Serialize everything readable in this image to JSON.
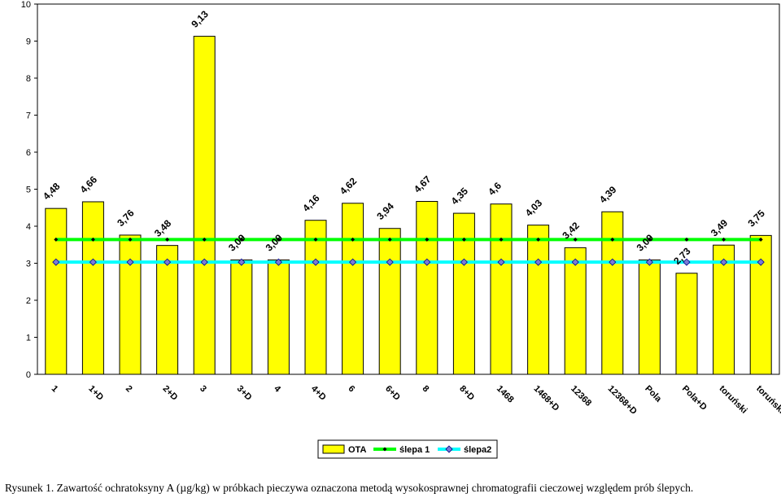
{
  "chart_data": {
    "type": "bar",
    "categories": [
      "1",
      "1+D",
      "2",
      "2+D",
      "3",
      "3+D",
      "4",
      "4+D",
      "6",
      "6+D",
      "8",
      "8+D",
      "1468",
      "1468+D",
      "12368",
      "12368+D",
      "Pola",
      "Pola+D",
      "toruński",
      "toruński+D"
    ],
    "series": [
      {
        "name": "OTA",
        "type": "bar",
        "color": "#ffff00",
        "values": [
          4.48,
          4.66,
          3.76,
          3.48,
          9.13,
          3.09,
          3.09,
          4.16,
          4.62,
          3.94,
          4.67,
          4.35,
          4.6,
          4.03,
          3.42,
          4.39,
          3.09,
          2.73,
          3.49,
          3.75
        ]
      },
      {
        "name": "ślepa 1",
        "type": "line",
        "color": "#00ff00",
        "marker_color": "#000000",
        "values": [
          3.64,
          3.64,
          3.64,
          3.64,
          3.64,
          3.64,
          3.64,
          3.64,
          3.64,
          3.64,
          3.64,
          3.64,
          3.64,
          3.64,
          3.64,
          3.64,
          3.64,
          3.64,
          3.64,
          3.64
        ]
      },
      {
        "name": "ślepa2",
        "type": "line",
        "color": "#00ffff",
        "marker_color": "#000080",
        "values": [
          3.03,
          3.03,
          3.03,
          3.03,
          3.03,
          3.03,
          3.03,
          3.03,
          3.03,
          3.03,
          3.03,
          3.03,
          3.03,
          3.03,
          3.03,
          3.03,
          3.03,
          3.03,
          3.03,
          3.03
        ]
      }
    ],
    "data_labels": [
      "4,48",
      "4,66",
      "3,76",
      "3,48",
      "9,13",
      "3,09",
      "3,09",
      "4,16",
      "4,62",
      "3,94",
      "4,67",
      "4,35",
      "4,6",
      "4,03",
      "3,42",
      "4,39",
      "3,09",
      "2,73",
      "3,49",
      "3,75"
    ],
    "y_ticks": [
      "0",
      "1",
      "2",
      "3",
      "4",
      "5",
      "6",
      "7",
      "8",
      "9",
      "10"
    ],
    "ylim": [
      0,
      10
    ],
    "grid": false,
    "legend_position": "bottom"
  },
  "caption": "Rysunek 1. Zawartość ochratoksyny A (µg/kg) w próbkach pieczywa oznaczona metodą wysokosprawnej chromatografii cieczowej względem prób ślepych."
}
